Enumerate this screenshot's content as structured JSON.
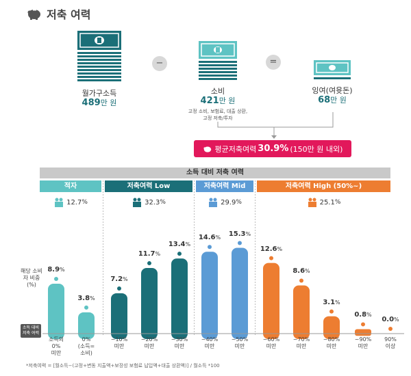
{
  "header": {
    "title": "저축 여력"
  },
  "equation": {
    "income": {
      "label": "월가구소득",
      "value": "489",
      "unit": "만 원"
    },
    "minus": "−",
    "spending": {
      "label": "소비",
      "value": "421",
      "unit": "만 원",
      "note_line1": "고정 소비, 보험료, 대출 상환,",
      "note_line2": "고정 저축/투자"
    },
    "equals": "=",
    "surplus": {
      "label": "잉여(여윳돈)",
      "value": "68",
      "unit": "만 원"
    }
  },
  "banner": {
    "prefix": "평균저축여력",
    "value": "30.9%",
    "suffix": "(150만 원 내외)"
  },
  "chart_data": {
    "type": "bar",
    "title": "소득 대비 저축 여력",
    "ylabel": "해당 소비자 비중 (%)",
    "xaxis_badge": "소득 대비 저축 여력",
    "categories": [
      [
        "소득의",
        "0%",
        "미만"
      ],
      [
        "0%",
        "(소득=",
        "소비)"
      ],
      [
        "~10%",
        "미만"
      ],
      [
        "~20%",
        "미만"
      ],
      [
        "~30%",
        "미만"
      ],
      [
        "~40%",
        "미만"
      ],
      [
        "~50%",
        "미만"
      ],
      [
        "~60%",
        "미만"
      ],
      [
        "~70%",
        "미만"
      ],
      [
        "~80%",
        "미만"
      ],
      [
        "~90%",
        "미만"
      ],
      [
        "90%",
        "이상"
      ]
    ],
    "values": [
      8.9,
      3.8,
      7.2,
      11.7,
      13.4,
      14.6,
      15.3,
      12.6,
      8.6,
      3.1,
      0.8,
      0.0
    ],
    "ylim": [
      0,
      16
    ],
    "groups": [
      {
        "name": "적자",
        "share": "12.7",
        "color": "#5ec3c3",
        "start": 0,
        "end": 1
      },
      {
        "name": "저축여력 Low",
        "share": "32.3",
        "color": "#1b6f78",
        "start": 2,
        "end": 4
      },
      {
        "name": "저축여력 Mid",
        "share": "29.9",
        "color": "#5b9bd5",
        "start": 5,
        "end": 6
      },
      {
        "name": "저축여력 High (50%~)",
        "share": "25.1",
        "color": "#ed7d31",
        "start": 7,
        "end": 11
      }
    ],
    "pct_symbol": "%"
  },
  "footnote": "*저축여력 = [월소득−(고정+변동 지출액+보장성 보험료 납입액+대출 상환액)] / 월소득 *100"
}
